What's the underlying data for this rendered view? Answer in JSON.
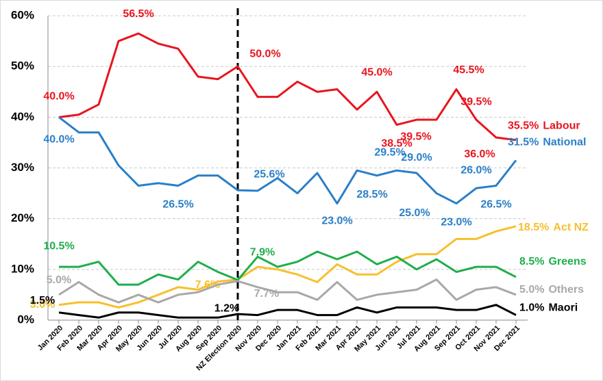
{
  "chart_data": {
    "type": "line",
    "categories": [
      "Jan 2020",
      "Feb 2020",
      "Mar 2020",
      "Apr 2020",
      "May 2020",
      "Jun 2020",
      "Jul 2020",
      "Aug 2020",
      "Sep 2020",
      "NZ Election 2020",
      "Nov 2020",
      "Dec 2020",
      "Jan 2021",
      "Feb 2021",
      "Mar 2021",
      "Apr 2021",
      "May 2021",
      "Jun 2021",
      "Jul 2021",
      "Aug 2021",
      "Sep 2021",
      "Oct 2021",
      "Nov 2021",
      "Dec 2021"
    ],
    "ylim": [
      0,
      60
    ],
    "yticks": [
      {
        "value": 0,
        "label": "0%"
      },
      {
        "value": 10,
        "label": "10%"
      },
      {
        "value": 20,
        "label": "20%"
      },
      {
        "value": 30,
        "label": "30%"
      },
      {
        "value": 40,
        "label": "40%"
      },
      {
        "value": 50,
        "label": "50%"
      },
      {
        "value": 60,
        "label": "60%"
      }
    ],
    "grid": true,
    "series": [
      {
        "name": "Labour",
        "color": "#e8141e",
        "values": [
          40,
          40.5,
          42.5,
          55,
          56.5,
          54.5,
          53.5,
          48,
          47.5,
          50,
          44,
          44,
          47,
          45,
          45.5,
          41.5,
          45,
          38.5,
          39.5,
          39.5,
          45.5,
          39.5,
          36,
          35.5
        ],
        "value_labels": [
          "40.0%",
          null,
          null,
          null,
          "56.5%",
          null,
          null,
          null,
          null,
          "50.0%",
          null,
          null,
          null,
          null,
          null,
          null,
          "45.0%",
          "38.5%",
          null,
          "39.5%",
          "45.5%",
          "39.5%",
          "36.0%",
          "35.5%"
        ]
      },
      {
        "name": "National",
        "color": "#2a7fc8",
        "values": [
          40,
          37,
          37,
          30.5,
          26.5,
          27,
          26.5,
          28.5,
          28.5,
          25.6,
          25.5,
          28,
          25,
          29,
          23,
          29.5,
          28.5,
          29.5,
          29,
          25,
          23,
          26,
          26.5,
          31.5
        ],
        "value_labels": [
          "40.0%",
          null,
          null,
          null,
          null,
          null,
          "26.5%",
          null,
          null,
          "25.6%",
          null,
          null,
          null,
          null,
          "23.0%",
          null,
          "28.5%",
          "29.5%",
          "29.0%",
          "25.0%",
          "23.0%",
          "26.0%",
          "26.5%",
          "31.5%"
        ]
      },
      {
        "name": "Act NZ",
        "color": "#f8bf2c",
        "values": [
          3,
          3.5,
          3.5,
          2.5,
          3.5,
          5,
          6.5,
          6,
          7.6,
          8,
          10.5,
          10,
          9,
          7.5,
          11,
          9,
          9,
          11.5,
          13,
          13,
          16,
          16,
          17.5,
          18.5
        ],
        "value_labels": [
          "3.0%",
          null,
          null,
          null,
          null,
          null,
          null,
          null,
          "7.6%",
          null,
          null,
          null,
          null,
          null,
          null,
          null,
          null,
          null,
          null,
          null,
          null,
          null,
          null,
          "18.5%"
        ]
      },
      {
        "name": "Greens",
        "color": "#1fae4b",
        "values": [
          10.5,
          10.5,
          11.5,
          7,
          7,
          9,
          8,
          11.5,
          9.5,
          7.9,
          12.5,
          10.5,
          11.5,
          13.5,
          12,
          13.5,
          11,
          12.5,
          10,
          12,
          9.5,
          10.5,
          10.5,
          8.5
        ],
        "value_labels": [
          "10.5%",
          null,
          null,
          null,
          null,
          null,
          null,
          null,
          null,
          "7.9%",
          null,
          null,
          null,
          null,
          null,
          null,
          null,
          null,
          null,
          null,
          null,
          null,
          null,
          "8.5%"
        ]
      },
      {
        "name": "Others",
        "color": "#a8a8a8",
        "values": [
          5,
          7.5,
          5,
          3.5,
          5,
          3.5,
          5,
          5.5,
          7,
          7.7,
          6.5,
          5.5,
          5.5,
          4,
          7.5,
          4,
          5,
          5.5,
          6,
          8,
          4,
          6,
          6.5,
          5
        ],
        "value_labels": [
          "5.0%",
          null,
          null,
          null,
          null,
          null,
          null,
          null,
          null,
          "7.7%",
          null,
          null,
          null,
          null,
          null,
          null,
          null,
          null,
          null,
          null,
          null,
          null,
          null,
          "5.0%"
        ]
      },
      {
        "name": "Maori",
        "color": "#000000",
        "values": [
          1.5,
          1,
          0.5,
          1.5,
          1.5,
          1,
          0.5,
          0.5,
          0.5,
          1.2,
          1,
          2,
          2,
          1,
          1,
          2.5,
          1.5,
          2.5,
          2.5,
          2.5,
          2,
          2,
          3,
          1
        ],
        "value_labels": [
          "1.5%",
          null,
          null,
          null,
          null,
          null,
          null,
          null,
          null,
          "1.2%",
          null,
          null,
          null,
          null,
          null,
          null,
          null,
          null,
          null,
          null,
          null,
          null,
          null,
          "1.0%"
        ]
      }
    ]
  }
}
